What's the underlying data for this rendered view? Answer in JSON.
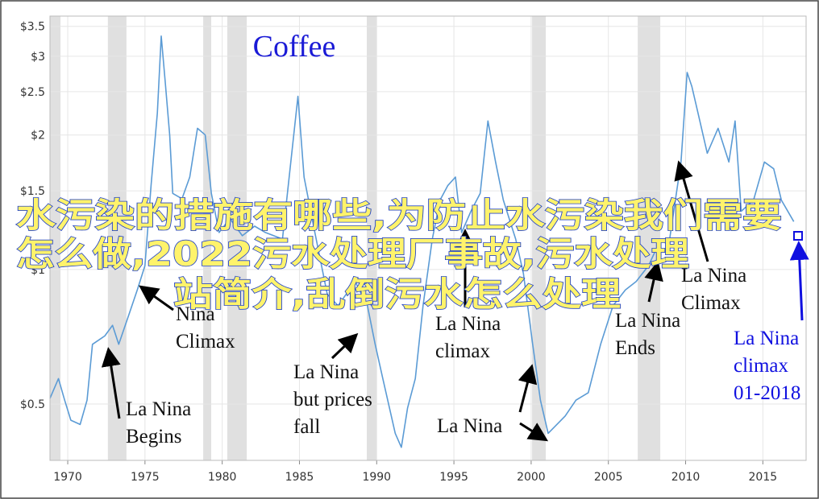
{
  "chart_data": {
    "type": "line",
    "title": "Coffee",
    "log_scale_y": true,
    "grid": true,
    "xlim": [
      1968.85,
      2017.8
    ],
    "ylim": [
      0.374,
      3.69
    ],
    "xticks": [
      1970,
      1975,
      1980,
      1985,
      1990,
      1995,
      2000,
      2005,
      2010,
      2015
    ],
    "yticks": [
      {
        "value": 0.5,
        "label": "$0.5"
      },
      {
        "value": 1,
        "label": "$1"
      },
      {
        "value": 1.5,
        "label": "$1.5"
      },
      {
        "value": 2,
        "label": "$2"
      },
      {
        "value": 2.5,
        "label": "$2.5"
      },
      {
        "value": 3,
        "label": "$3"
      },
      {
        "value": 3.5,
        "label": "$3.5"
      }
    ],
    "shaded_periods": [
      [
        1968.85,
        1969.53
      ],
      [
        1972.6,
        1973.8
      ],
      [
        1978.77,
        1979.29
      ],
      [
        1980.33,
        1981.59
      ],
      [
        1989.36,
        1989.99
      ],
      [
        2000.06,
        2000.95
      ],
      [
        2006.9,
        2008.36
      ]
    ],
    "shade_color": "#e0e0e0",
    "series": [
      {
        "color": "#5b9bd5",
        "x": [
          1968.85,
          1969.4,
          1969.8,
          1970.2,
          1970.8,
          1971.25,
          1971.6,
          1972.4,
          1972.9,
          1973.3,
          1974.0,
          1974.5,
          1975.0,
          1975.4,
          1975.8,
          1976.05,
          1976.3,
          1976.6,
          1976.8,
          1977.4,
          1977.9,
          1978.4,
          1978.9,
          1979.3,
          1979.8,
          1980.5,
          1981.3,
          1982.1,
          1982.8,
          1983.9,
          1984.9,
          1985.3,
          1986.0,
          1986.8,
          1987.5,
          1988.6,
          1989.4,
          1989.9,
          1990.4,
          1991.2,
          1991.6,
          1992.0,
          1992.5,
          1993.0,
          1993.6,
          1994.1,
          1994.6,
          1995.1,
          1995.5,
          1996.1,
          1996.7,
          1997.2,
          1997.7,
          1998.2,
          1999.0,
          1999.5,
          2000.1,
          2000.6,
          2001.1,
          2002.2,
          2002.9,
          2003.7,
          2004.5,
          2005.3,
          2006.1,
          2006.8,
          2007.6,
          2008.4,
          2008.9,
          2009.7,
          2010.1,
          2010.4,
          2010.8,
          2011.4,
          2012.1,
          2012.8,
          2013.2,
          2013.6,
          2014.4,
          2015.1,
          2015.7,
          2016.2,
          2017.0
        ],
        "values": [
          0.515,
          0.57,
          0.51,
          0.46,
          0.45,
          0.51,
          0.68,
          0.71,
          0.75,
          0.68,
          0.8,
          0.9,
          1.02,
          1.55,
          2.24,
          3.33,
          2.65,
          2.0,
          1.48,
          1.44,
          1.61,
          2.07,
          2.0,
          1.48,
          1.21,
          1.3,
          1.19,
          1.25,
          1.21,
          1.17,
          2.44,
          1.61,
          1.21,
          0.88,
          0.83,
          0.94,
          0.83,
          0.68,
          0.57,
          0.43,
          0.4,
          0.49,
          0.57,
          0.83,
          1.17,
          1.43,
          1.54,
          1.61,
          1.21,
          1.35,
          1.48,
          2.15,
          1.74,
          1.43,
          1.17,
          0.98,
          0.68,
          0.51,
          0.43,
          0.47,
          0.51,
          0.53,
          0.68,
          0.83,
          0.9,
          0.94,
          1.02,
          1.17,
          1.13,
          1.74,
          2.76,
          2.57,
          2.24,
          1.82,
          2.07,
          1.74,
          2.15,
          1.35,
          1.43,
          1.74,
          1.68,
          1.43,
          1.28
        ]
      }
    ],
    "annotations": [
      {
        "lines": [
          "La Nina",
          "Begins"
        ]
      },
      {
        "lines": [
          "Nina",
          "Climax"
        ]
      },
      {
        "lines": [
          "La Nina",
          "but prices",
          "fall"
        ]
      },
      {
        "lines": [
          "La Nina",
          "climax"
        ]
      },
      {
        "lines": [
          "La Nina"
        ]
      },
      {
        "lines": [
          "La Nina",
          "Ends"
        ]
      },
      {
        "lines": [
          "La Nina",
          "Climax"
        ]
      },
      {
        "lines": [
          "La Nina",
          "climax",
          "01-2018"
        ],
        "color": "#1010e0"
      }
    ]
  },
  "overlay_title": [
    "水污染的措施有哪些,为防止水污染我们需要",
    "怎么做,2022污水处理厂事故,污水处理",
    "站简介,乱倒污水怎么处理"
  ]
}
